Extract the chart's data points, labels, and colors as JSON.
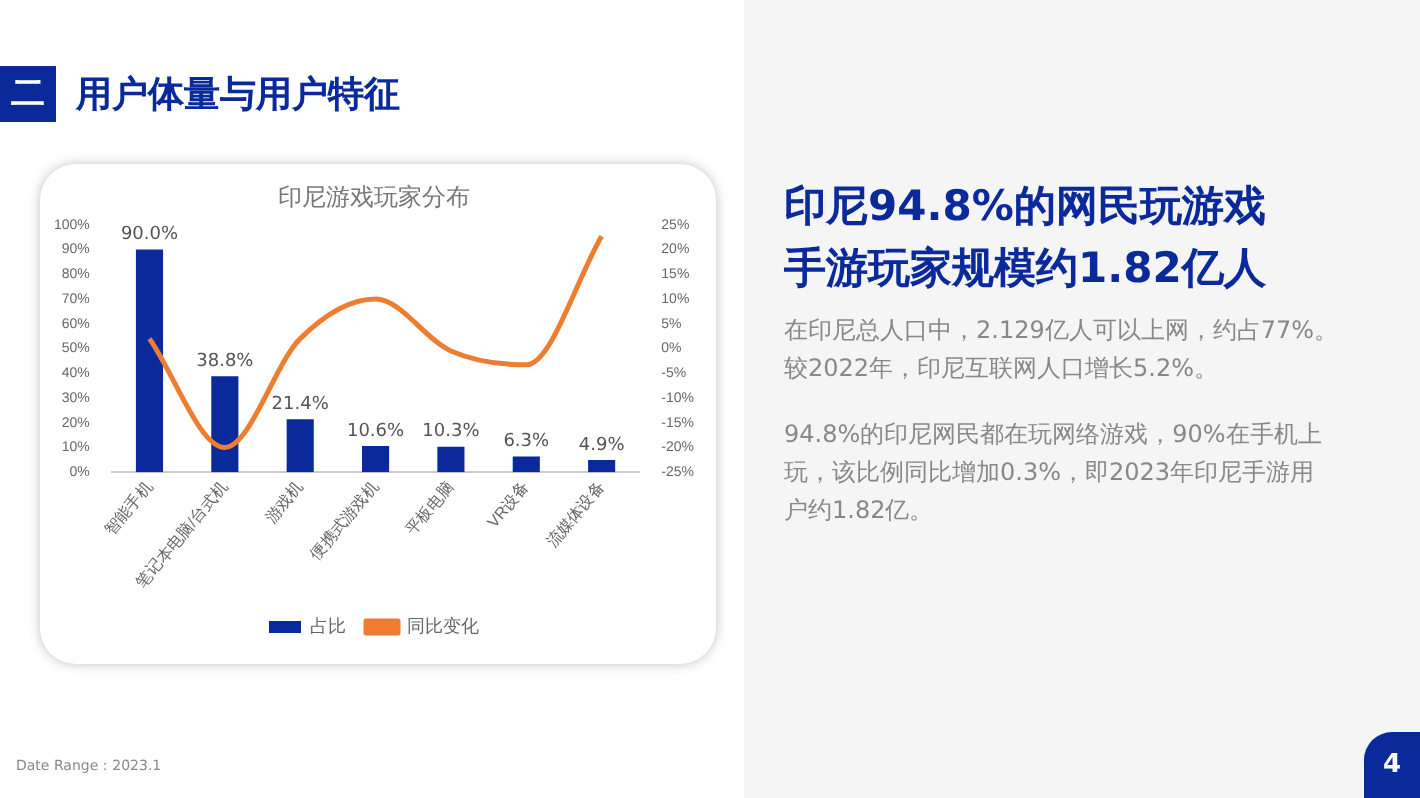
{
  "chart_data": {
    "type": "bar",
    "title": "印尼游戏玩家分布",
    "categories": [
      "智能手机",
      "笔记本电脑/台式机",
      "游戏机",
      "便携式游戏机",
      "平板电脑",
      "VR设备",
      "流媒体设备"
    ],
    "series": [
      {
        "name": "占比",
        "type": "bar",
        "color": "#0a2a9c",
        "values": [
          90.0,
          38.8,
          21.4,
          10.6,
          10.3,
          6.3,
          4.9
        ],
        "value_labels": [
          "90.0%",
          "38.8%",
          "21.4%",
          "10.6%",
          "10.3%",
          "6.3%",
          "4.9%"
        ]
      },
      {
        "name": "同比变化",
        "type": "line",
        "axis": "y2",
        "color": "#ed7d31",
        "values": [
          2,
          -20,
          2,
          10,
          -0.5,
          -3.3,
          22.7
        ]
      }
    ],
    "ylim": [
      0,
      100
    ],
    "yticks": [
      {
        "value": 0,
        "label": "0%"
      },
      {
        "value": 10,
        "label": "10%"
      },
      {
        "value": 20,
        "label": "20%"
      },
      {
        "value": 30,
        "label": "30%"
      },
      {
        "value": 40,
        "label": "40%"
      },
      {
        "value": 50,
        "label": "50%"
      },
      {
        "value": 60,
        "label": "60%"
      },
      {
        "value": 70,
        "label": "70%"
      },
      {
        "value": 80,
        "label": "80%"
      },
      {
        "value": 90,
        "label": "90%"
      },
      {
        "value": 100,
        "label": "100%"
      }
    ],
    "y2lim": [
      -25,
      25
    ],
    "y2ticks": [
      {
        "value": -25,
        "label": "-25%"
      },
      {
        "value": -20,
        "label": "-20%"
      },
      {
        "value": -15,
        "label": "-15%"
      },
      {
        "value": -10,
        "label": "-10%"
      },
      {
        "value": -5,
        "label": "-5%"
      },
      {
        "value": 0,
        "label": "0%"
      },
      {
        "value": 5,
        "label": "5%"
      },
      {
        "value": 10,
        "label": "10%"
      },
      {
        "value": 15,
        "label": "15%"
      },
      {
        "value": 20,
        "label": "20%"
      },
      {
        "value": 25,
        "label": "25%"
      }
    ],
    "grid": false,
    "legend": "bottom",
    "marker": "none",
    "annotations": [
      "二",
      "用户体量与用户特征",
      "印尼94.8%的网民玩游戏手游玩家规模约1.82亿人",
      "在印尼总人口中，2.129亿人可以上网，约占77%。较2022年，印尼互联网人口增长5.2%。",
      "94.8%的印尼网民都在玩网络游戏，90%在手机上玩，该比例同比增加0.3%，即2023年印尼手游用户约1.82亿。",
      "Date Range：2023.1",
      "4"
    ]
  }
}
